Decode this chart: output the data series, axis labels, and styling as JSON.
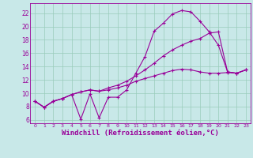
{
  "bg_color": "#c8e8e8",
  "grid_color": "#99ccbb",
  "line_color": "#990099",
  "xlabel": "Windchill (Refroidissement éolien,°C)",
  "xlabel_fontsize": 6.5,
  "ytick_labels": [
    "6",
    "8",
    "10",
    "12",
    "14",
    "16",
    "18",
    "20",
    "22"
  ],
  "ytick_vals": [
    6,
    8,
    10,
    12,
    14,
    16,
    18,
    20,
    22
  ],
  "xtick_vals": [
    0,
    1,
    2,
    3,
    4,
    5,
    6,
    7,
    8,
    9,
    10,
    11,
    12,
    13,
    14,
    15,
    16,
    17,
    18,
    19,
    20,
    21,
    22,
    23
  ],
  "xlim": [
    -0.5,
    23.5
  ],
  "ylim": [
    5.5,
    23.5
  ],
  "series": [
    [
      8.8,
      7.9,
      8.8,
      9.2,
      9.8,
      6.1,
      9.9,
      6.3,
      9.4,
      9.4,
      10.5,
      13.0,
      15.5,
      19.3,
      20.5,
      21.9,
      22.4,
      22.2,
      20.8,
      19.2,
      17.2,
      13.2,
      13.0,
      13.5
    ],
    [
      8.8,
      7.9,
      8.8,
      9.2,
      9.8,
      10.2,
      10.5,
      10.3,
      10.5,
      10.8,
      11.2,
      11.8,
      12.2,
      12.6,
      13.0,
      13.4,
      13.6,
      13.5,
      13.2,
      13.0,
      13.0,
      13.1,
      13.0,
      13.5
    ],
    [
      8.8,
      7.9,
      8.8,
      9.2,
      9.8,
      10.2,
      10.5,
      10.3,
      10.8,
      11.2,
      11.8,
      12.6,
      13.5,
      14.5,
      15.6,
      16.5,
      17.2,
      17.8,
      18.2,
      19.0,
      19.2,
      13.2,
      13.0,
      13.5
    ]
  ]
}
